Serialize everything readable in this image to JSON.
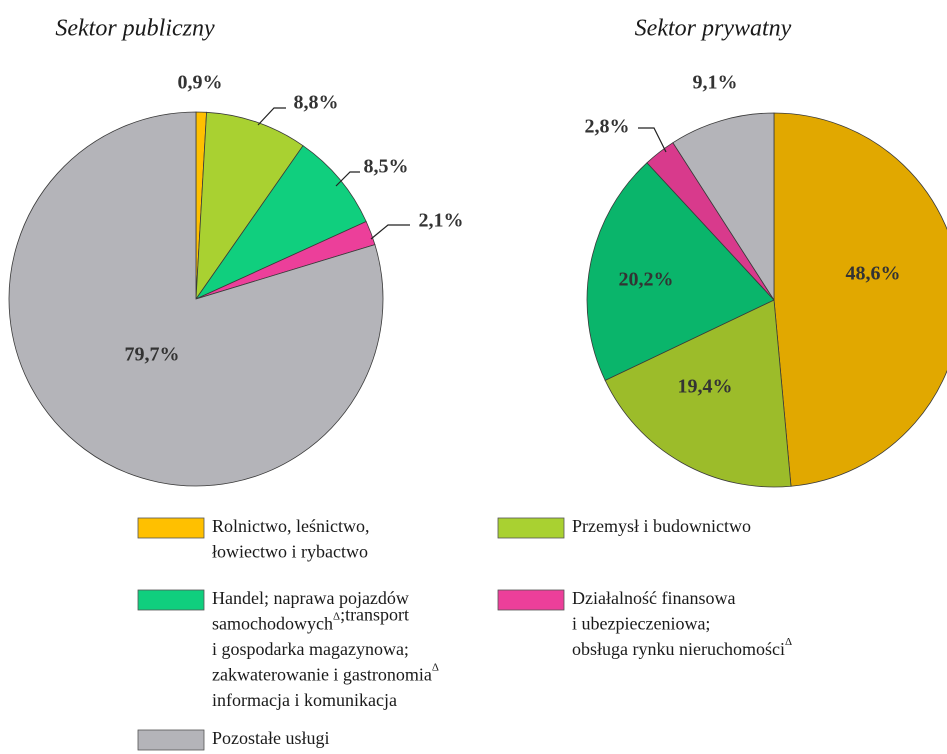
{
  "chart_data": [
    {
      "type": "pie",
      "title": "Sektor publiczny",
      "values": [
        0.9,
        8.8,
        8.5,
        2.1,
        79.7
      ],
      "value_labels": [
        "0,9%",
        "8,8%",
        "8,5%",
        "2,1%",
        "79,7%"
      ],
      "colors": [
        "#ffc000",
        "#a9d131",
        "#10cf7e",
        "#ec3f9a",
        "#b4b4b9"
      ]
    },
    {
      "type": "pie",
      "title": "Sektor prywatny",
      "values": [
        48.6,
        19.4,
        20.2,
        2.8,
        9.1
      ],
      "value_labels": [
        "48,6%",
        "19,4%",
        "20,2%",
        "2,8%",
        "9,1%"
      ],
      "colors": [
        "#e1a800",
        "#9cbc2a",
        "#0ab56b",
        "#d83a8c",
        "#b4b4b9"
      ]
    }
  ],
  "legend": {
    "items": [
      {
        "color": "#ffc000",
        "lines": [
          [
            "Rolnictwo, leśnictwo,"
          ],
          [
            "łowiectwo i rybactwo"
          ]
        ]
      },
      {
        "color": "#a9d131",
        "lines": [
          [
            "Przemysł i budownictwo"
          ]
        ]
      },
      {
        "color": "#10cf7e",
        "lines": [
          [
            "Handel; naprawa pojazdów"
          ],
          [
            "samochodowych",
            {
              "sup": "Δ"
            },
            ";transport"
          ],
          [
            "i gospodarka magazynowa;"
          ],
          [
            "zakwaterowanie i gastronomia",
            {
              "sup": "Δ"
            }
          ],
          [
            "informacja i komunikacja"
          ]
        ]
      },
      {
        "color": "#ec3f9a",
        "lines": [
          [
            "Działalność finansowa"
          ],
          [
            "i ubezpieczeniowa;"
          ],
          [
            "obsługa rynku nieruchomości",
            {
              "sup": "Δ"
            }
          ]
        ]
      },
      {
        "color": "#b4b4b9",
        "lines": [
          [
            "Pozostałe usługi"
          ]
        ]
      }
    ]
  }
}
